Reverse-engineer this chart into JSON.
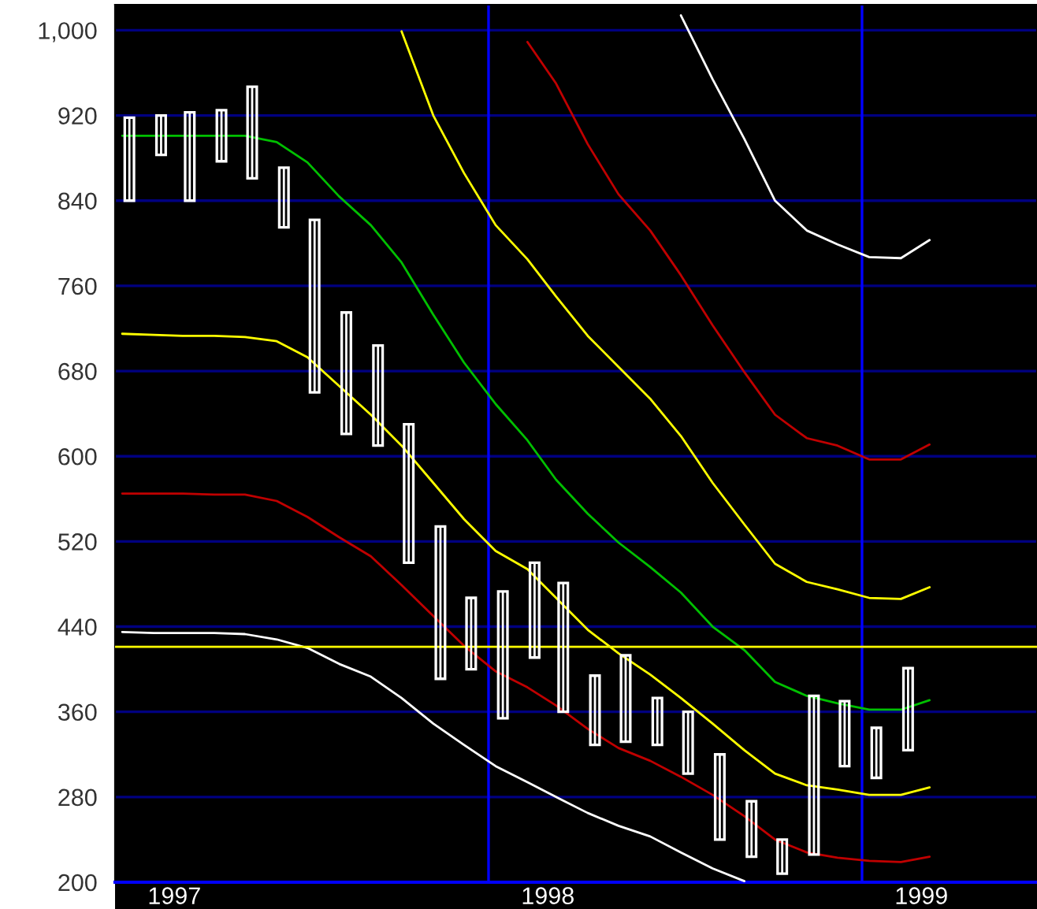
{
  "chart_data": {
    "type": "candlestick",
    "color": "#ffffff",
    "x": [
      "1997-01-15",
      "1997-02-15",
      "1997-03-15",
      "1997-04-15",
      "1997-05-15",
      "1997-06-15",
      "1997-07-15",
      "1997-08-15",
      "1997-09-15",
      "1997-10-15",
      "1997-11-15",
      "1997-12-15",
      "1998-01-15",
      "1998-02-15",
      "1998-03-15",
      "1998-04-15",
      "1998-05-15",
      "1998-06-15",
      "1998-07-15",
      "1998-08-15",
      "1998-09-15",
      "1998-10-15",
      "1998-11-15",
      "1998-12-15",
      "1999-01-15",
      "1999-02-15"
    ],
    "ohlc": [
      [
        840,
        918,
        840,
        918
      ],
      [
        883,
        920,
        883,
        920
      ],
      [
        840,
        923,
        840,
        923
      ],
      [
        877,
        925,
        877,
        925
      ],
      [
        861,
        947,
        861,
        947
      ],
      [
        815,
        871,
        815,
        871
      ],
      [
        660,
        822,
        660,
        822
      ],
      [
        621,
        735,
        621,
        735
      ],
      [
        610,
        704,
        610,
        704
      ],
      [
        500,
        630,
        500,
        630
      ],
      [
        391,
        534,
        391,
        534
      ],
      [
        400,
        467,
        400,
        467
      ],
      [
        354,
        473,
        354,
        473
      ],
      [
        411,
        500,
        411,
        500
      ],
      [
        360,
        481,
        360,
        481
      ],
      [
        329,
        394,
        329,
        394
      ],
      [
        332,
        413,
        332,
        413
      ],
      [
        329,
        373,
        329,
        373
      ],
      [
        302,
        360,
        302,
        360
      ],
      [
        240,
        320,
        240,
        320
      ],
      [
        224,
        276,
        224,
        276
      ],
      [
        208,
        240,
        208,
        240
      ],
      [
        226,
        375,
        226,
        375
      ],
      [
        309,
        370,
        309,
        370
      ],
      [
        298,
        345,
        298,
        345
      ],
      [
        324,
        401,
        324,
        401
      ]
    ],
    "series": [
      {
        "type": "line",
        "color": "#ffffff",
        "x": [
          "1998-07-08",
          "1998-08-08",
          "1998-09-08",
          "1998-10-08",
          "1998-11-08",
          "1998-12-08",
          "1999-01-08",
          "1999-02-08",
          "1999-03-08"
        ],
        "values": [
          1014,
          954,
          898,
          840,
          812,
          799,
          787,
          786,
          803
        ]
      },
      {
        "type": "line",
        "color": "#c00000",
        "x": [
          "1998-02-08",
          "1998-03-08",
          "1998-04-08",
          "1998-05-08",
          "1998-06-08",
          "1998-07-08",
          "1998-08-08",
          "1998-09-08",
          "1998-10-08",
          "1998-11-08",
          "1998-12-08",
          "1999-01-08",
          "1999-02-08",
          "1999-03-08"
        ],
        "values": [
          989,
          950,
          893,
          846,
          812,
          770,
          723,
          679,
          639,
          617,
          610,
          597,
          597,
          611
        ]
      },
      {
        "type": "line",
        "color": "#ffff00",
        "x": [
          "1997-10-08",
          "1997-11-08",
          "1997-12-08",
          "1998-01-08",
          "1998-02-08",
          "1998-03-08",
          "1998-04-08",
          "1998-05-08",
          "1998-06-08",
          "1998-07-08",
          "1998-08-08",
          "1998-09-08",
          "1998-10-08",
          "1998-11-08",
          "1998-12-08",
          "1999-01-08",
          "1999-02-08",
          "1999-03-08"
        ],
        "values": [
          999,
          920,
          866,
          817,
          785,
          750,
          713,
          684,
          654,
          619,
          575,
          536,
          499,
          482,
          475,
          467,
          466,
          477
        ]
      },
      {
        "type": "line",
        "color": "#00c000",
        "x": [
          "1997-01-08",
          "1997-02-08",
          "1997-03-08",
          "1997-04-08",
          "1997-05-08",
          "1997-06-08",
          "1997-07-08",
          "1997-08-08",
          "1997-09-08",
          "1997-10-08",
          "1997-11-08",
          "1997-12-08",
          "1998-01-08",
          "1998-02-08",
          "1998-03-08",
          "1998-04-08",
          "1998-05-08",
          "1998-06-08",
          "1998-07-08",
          "1998-08-08",
          "1998-09-08",
          "1998-10-08",
          "1998-11-08",
          "1998-12-08",
          "1999-01-08",
          "1999-02-08",
          "1999-03-08"
        ],
        "values": [
          901,
          901,
          901,
          901,
          901,
          895,
          876,
          844,
          817,
          782,
          733,
          688,
          649,
          615,
          578,
          546,
          519,
          496,
          472,
          440,
          418,
          388,
          375,
          368,
          362,
          362,
          371
        ]
      },
      {
        "type": "line",
        "color": "#ffff00",
        "x": [
          "1997-01-08",
          "1997-02-08",
          "1997-03-08",
          "1997-04-08",
          "1997-05-08",
          "1997-06-08",
          "1997-07-08",
          "1997-08-08",
          "1997-09-08",
          "1997-10-08",
          "1997-11-08",
          "1997-12-08",
          "1998-01-08",
          "1998-02-08",
          "1998-03-08",
          "1998-04-08",
          "1998-05-08",
          "1998-06-08",
          "1998-07-08",
          "1998-08-08",
          "1998-09-08",
          "1998-10-08",
          "1998-11-08",
          "1998-12-08",
          "1999-01-08",
          "1999-02-08",
          "1999-03-08"
        ],
        "values": [
          715,
          714,
          713,
          713,
          712,
          708,
          693,
          666,
          639,
          610,
          575,
          541,
          511,
          494,
          467,
          437,
          415,
          395,
          373,
          349,
          324,
          302,
          291,
          287,
          282,
          282,
          289
        ]
      },
      {
        "type": "line",
        "color": "#c00000",
        "x": [
          "1997-01-08",
          "1997-02-08",
          "1997-03-08",
          "1997-04-08",
          "1997-05-08",
          "1997-06-08",
          "1997-07-08",
          "1997-08-08",
          "1997-09-08",
          "1997-10-08",
          "1997-11-08",
          "1997-12-08",
          "1998-01-08",
          "1998-02-08",
          "1998-03-08",
          "1998-04-08",
          "1998-05-08",
          "1998-06-08",
          "1998-07-08",
          "1998-08-08",
          "1998-09-08",
          "1998-10-08",
          "1998-11-08",
          "1998-12-08",
          "1999-01-08",
          "1999-02-08",
          "1999-03-08"
        ],
        "values": [
          565,
          565,
          565,
          564,
          564,
          558,
          543,
          524,
          506,
          479,
          450,
          422,
          398,
          383,
          366,
          344,
          326,
          314,
          299,
          282,
          262,
          240,
          228,
          223,
          220,
          219,
          224
        ]
      },
      {
        "type": "line",
        "color": "#ffffff",
        "x": [
          "1997-01-08",
          "1997-02-08",
          "1997-03-08",
          "1997-04-08",
          "1997-05-08",
          "1997-06-08",
          "1997-07-08",
          "1997-08-08",
          "1997-09-08",
          "1997-10-08",
          "1997-11-08",
          "1997-12-08",
          "1998-01-08",
          "1998-02-08",
          "1998-03-08",
          "1998-04-08",
          "1998-05-08",
          "1998-06-08",
          "1998-07-08",
          "1998-08-08",
          "1998-09-08"
        ],
        "values": [
          435,
          434,
          434,
          434,
          433,
          428,
          420,
          405,
          393,
          373,
          349,
          329,
          309,
          294,
          280,
          265,
          253,
          243,
          228,
          213,
          201
        ]
      }
    ],
    "ref_lines": [
      {
        "axis": "y",
        "value": 421,
        "color": "#ffff00"
      },
      {
        "axis": "x",
        "value": "1998-01-01",
        "color": "#0000ff"
      },
      {
        "axis": "x",
        "value": "1999-01-01",
        "color": "#0000ff"
      }
    ],
    "xlim": [
      "1997-01-01",
      "1999-06-21"
    ],
    "xticks": [
      {
        "value": "1997-02-28",
        "label": "1997"
      },
      {
        "value": "1998-02-28",
        "label": "1998"
      },
      {
        "value": "1999-02-28",
        "label": "1999"
      }
    ],
    "ylim": [
      200,
      1024
    ],
    "yticks": [
      200,
      280,
      360,
      440,
      520,
      600,
      680,
      760,
      840,
      920,
      {
        "value": 1000,
        "label": "1,000"
      }
    ],
    "grid": "y"
  }
}
